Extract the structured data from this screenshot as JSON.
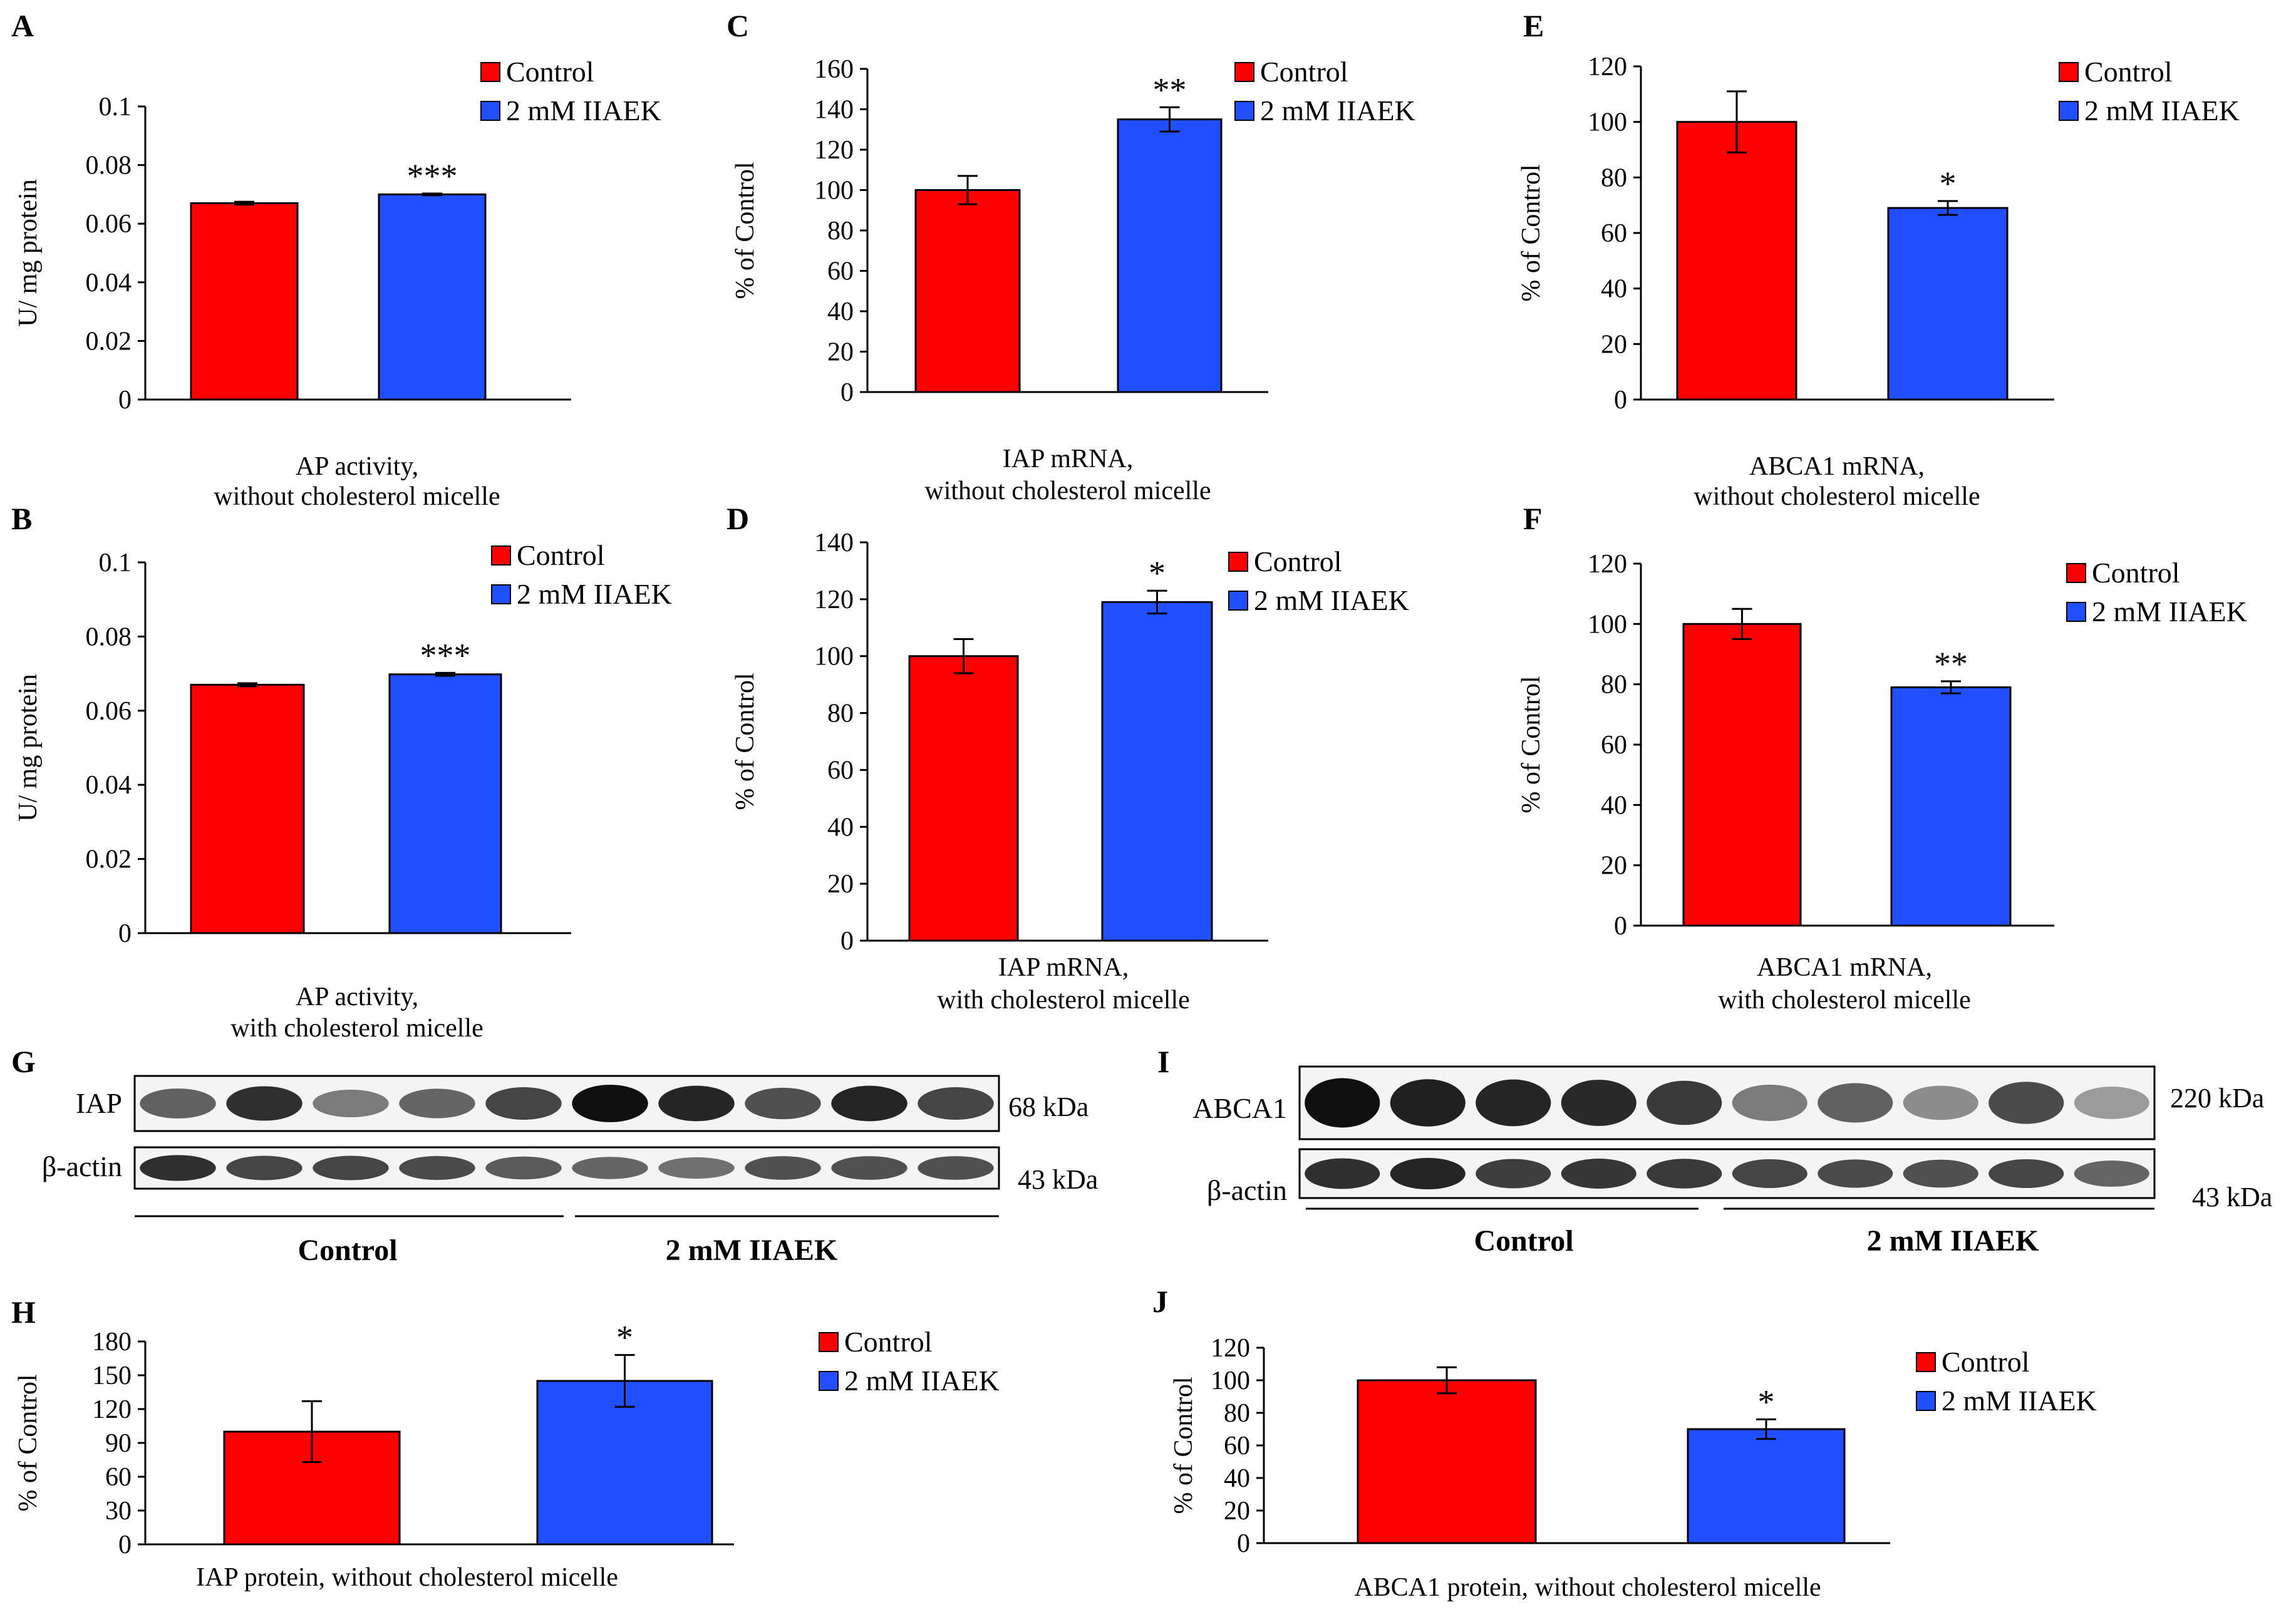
{
  "colors": {
    "control": "#ff0000",
    "treated": "#1f4fff",
    "axis": "#000000"
  },
  "legend": {
    "control": "Control",
    "treated": "2 mM IIAEK"
  },
  "chart_data": [
    {
      "panel": "A",
      "type": "bar",
      "categories": [
        "Control",
        "2 mM IIAEK"
      ],
      "values": [
        0.067,
        0.07
      ],
      "errors": [
        0.0005,
        0.0003
      ],
      "significance": [
        "",
        "***"
      ],
      "ylabel": "U/ mg protein",
      "xlabel_lines": [
        "AP activity,",
        "without cholesterol micelle"
      ],
      "ylim": [
        0,
        0.1
      ],
      "yticks": [
        0,
        0.02,
        0.04,
        0.06,
        0.08,
        0.1
      ],
      "ytick_labels": [
        "0",
        "0.02",
        "0.04",
        "0.06",
        "0.08",
        "0.1"
      ],
      "grid": false,
      "legend_position": "top-right"
    },
    {
      "panel": "B",
      "type": "bar",
      "categories": [
        "Control",
        "2 mM IIAEK"
      ],
      "values": [
        0.067,
        0.0698
      ],
      "errors": [
        0.0004,
        0.0004
      ],
      "significance": [
        "",
        "***"
      ],
      "ylabel": "U/ mg protein",
      "xlabel_lines": [
        "AP activity,",
        "with cholesterol micelle"
      ],
      "ylim": [
        0,
        0.1
      ],
      "yticks": [
        0,
        0.02,
        0.04,
        0.06,
        0.08,
        0.1
      ],
      "ytick_labels": [
        "0",
        "0.02",
        "0.04",
        "0.06",
        "0.08",
        "0.1"
      ],
      "grid": false,
      "legend_position": "top-right"
    },
    {
      "panel": "C",
      "type": "bar",
      "categories": [
        "Control",
        "2 mM IIAEK"
      ],
      "values": [
        100,
        135
      ],
      "errors": [
        7,
        6
      ],
      "significance": [
        "",
        "**"
      ],
      "ylabel": "% of Control",
      "xlabel_lines": [
        "IAP mRNA,",
        "without cholesterol micelle"
      ],
      "ylim": [
        0,
        160
      ],
      "yticks": [
        0,
        20,
        40,
        60,
        80,
        100,
        120,
        140,
        160
      ],
      "ytick_labels": [
        "0",
        "20",
        "40",
        "60",
        "80",
        "100",
        "120",
        "140",
        "160"
      ],
      "grid": false,
      "legend_position": "top-right"
    },
    {
      "panel": "D",
      "type": "bar",
      "categories": [
        "Control",
        "2 mM IIAEK"
      ],
      "values": [
        100,
        119
      ],
      "errors": [
        6,
        4
      ],
      "significance": [
        "",
        "*"
      ],
      "ylabel": "% of Control",
      "xlabel_lines": [
        "IAP mRNA,",
        "with cholesterol micelle"
      ],
      "ylim": [
        0,
        140
      ],
      "yticks": [
        0,
        20,
        40,
        60,
        80,
        100,
        120,
        140
      ],
      "ytick_labels": [
        "0",
        "20",
        "40",
        "60",
        "80",
        "100",
        "120",
        "140"
      ],
      "grid": false,
      "legend_position": "top-right"
    },
    {
      "panel": "E",
      "type": "bar",
      "categories": [
        "Control",
        "2 mM IIAEK"
      ],
      "values": [
        100,
        69
      ],
      "errors": [
        11,
        2.5
      ],
      "significance": [
        "",
        "*"
      ],
      "ylabel": "% of Control",
      "xlabel_lines": [
        "ABCA1 mRNA,",
        "without cholesterol micelle"
      ],
      "ylim": [
        0,
        120
      ],
      "yticks": [
        0,
        20,
        40,
        60,
        80,
        100,
        120
      ],
      "ytick_labels": [
        "0",
        "20",
        "40",
        "60",
        "80",
        "100",
        "120"
      ],
      "grid": false,
      "legend_position": "top-right"
    },
    {
      "panel": "F",
      "type": "bar",
      "categories": [
        "Control",
        "2 mM IIAEK"
      ],
      "values": [
        100,
        79
      ],
      "errors": [
        5,
        2
      ],
      "significance": [
        "",
        "**"
      ],
      "ylabel": "% of Control",
      "xlabel_lines": [
        "ABCA1 mRNA,",
        "with cholesterol micelle"
      ],
      "ylim": [
        0,
        120
      ],
      "yticks": [
        0,
        20,
        40,
        60,
        80,
        100,
        120
      ],
      "ytick_labels": [
        "0",
        "20",
        "40",
        "60",
        "80",
        "100",
        "120"
      ],
      "grid": false,
      "legend_position": "top-right"
    },
    {
      "panel": "H",
      "type": "bar",
      "categories": [
        "Control",
        "2 mM IIAEK"
      ],
      "values": [
        100,
        145
      ],
      "errors": [
        27,
        23
      ],
      "significance": [
        "",
        "*"
      ],
      "ylabel": "% of Control",
      "xlabel_lines": [
        "IAP protein, without cholesterol micelle"
      ],
      "ylim": [
        0,
        180
      ],
      "yticks": [
        0,
        30,
        60,
        90,
        120,
        150,
        180
      ],
      "ytick_labels": [
        "0",
        "30",
        "60",
        "90",
        "120",
        "150",
        "180"
      ],
      "grid": false,
      "legend_position": "right"
    },
    {
      "panel": "J",
      "type": "bar",
      "categories": [
        "Control",
        "2 mM IIAEK"
      ],
      "values": [
        100,
        70
      ],
      "errors": [
        8,
        6
      ],
      "significance": [
        "",
        "*"
      ],
      "ylabel": "% of Control",
      "xlabel_lines": [
        "ABCA1 protein, without cholesterol micelle"
      ],
      "ylim": [
        0,
        120
      ],
      "yticks": [
        0,
        20,
        40,
        60,
        80,
        100,
        120
      ],
      "ytick_labels": [
        "0",
        "20",
        "40",
        "60",
        "80",
        "100",
        "120"
      ],
      "grid": false,
      "legend_position": "right"
    }
  ],
  "western_blots": [
    {
      "panel": "G",
      "rows": [
        {
          "label": "IAP",
          "size": "68 kDa",
          "intensities": [
            0.62,
            0.85,
            0.5,
            0.6,
            0.75,
            1.0,
            0.9,
            0.7,
            0.9,
            0.75
          ]
        },
        {
          "label": "β-actin",
          "size": "43 kDa",
          "intensities": [
            0.85,
            0.75,
            0.75,
            0.72,
            0.65,
            0.6,
            0.55,
            0.7,
            0.7,
            0.7
          ]
        }
      ],
      "groups": [
        "Control",
        "2 mM IIAEK"
      ]
    },
    {
      "panel": "I",
      "rows": [
        {
          "label": "ABCA1",
          "size": "220 kDa",
          "intensities": [
            1.0,
            0.92,
            0.9,
            0.88,
            0.8,
            0.5,
            0.62,
            0.42,
            0.72,
            0.35
          ]
        },
        {
          "label": "β-actin",
          "size": "43 kDa",
          "intensities": [
            0.85,
            0.9,
            0.78,
            0.82,
            0.8,
            0.75,
            0.72,
            0.7,
            0.75,
            0.6
          ]
        }
      ],
      "groups": [
        "Control",
        "2 mM IIAEK"
      ]
    }
  ]
}
